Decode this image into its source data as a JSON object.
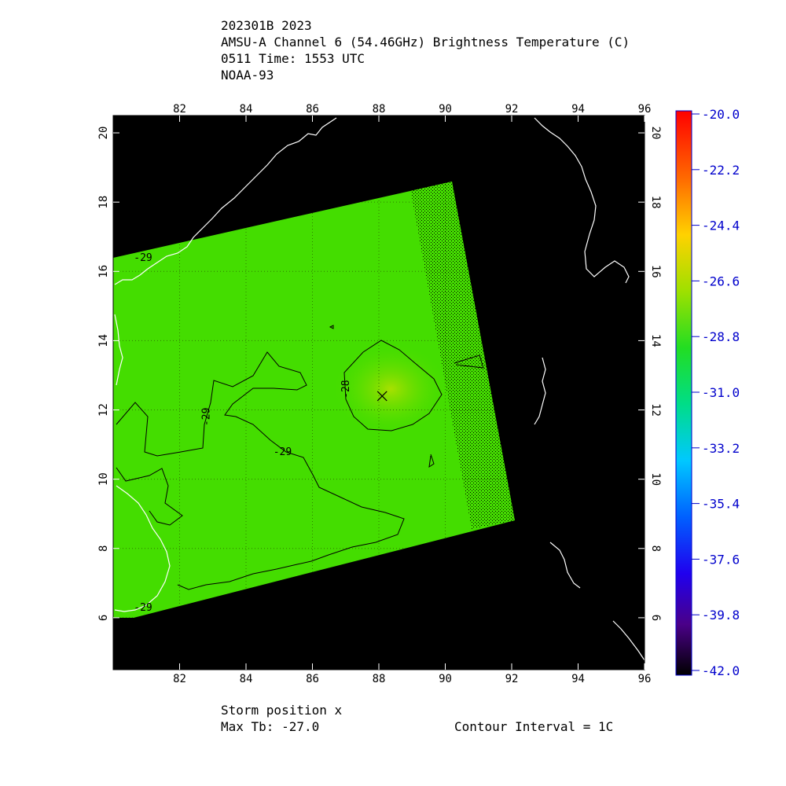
{
  "title": {
    "line1": "202301B 2023",
    "line2": "AMSU-A Channel 6 (54.46GHz) Brightness Temperature (C)",
    "line3": "0511 Time: 1553 UTC",
    "line4": "NOAA-93"
  },
  "footer": {
    "storm_position": "Storm position x",
    "max_tb": "Max Tb: -27.0",
    "contour_interval": "Contour Interval = 1C"
  },
  "map": {
    "lon_ticks": [
      "82",
      "84",
      "86",
      "88",
      "90",
      "92",
      "94",
      "96"
    ],
    "lat_ticks": [
      "6",
      "8",
      "10",
      "12",
      "14",
      "16",
      "18",
      "20"
    ],
    "lon_range": [
      80,
      96
    ],
    "lat_range": [
      4.5,
      20.5
    ],
    "storm_position": {
      "lon": 88.1,
      "lat": 12.4
    },
    "contour_labels": [
      {
        "text": "-29",
        "lon": 80.9,
        "lat": 16.3
      },
      {
        "text": "-29",
        "lon": 82.9,
        "lat": 11.8
      },
      {
        "text": "-28",
        "lon": 87.1,
        "lat": 12.6
      },
      {
        "text": "-29",
        "lon": 85.1,
        "lat": 10.7
      },
      {
        "text": "-29",
        "lon": 80.9,
        "lat": 6.2
      }
    ],
    "colors": {
      "background": "#000000",
      "swath": "#44dd00",
      "warm_core": "#a8e000",
      "coast": "#ffffff"
    }
  },
  "colorbar": {
    "labels": [
      "-20.0",
      "-22.2",
      "-24.4",
      "-26.6",
      "-28.8",
      "-31.0",
      "-33.2",
      "-35.4",
      "-37.6",
      "-39.8",
      "-42.0"
    ],
    "range": [
      -42.0,
      -20.0
    ]
  }
}
